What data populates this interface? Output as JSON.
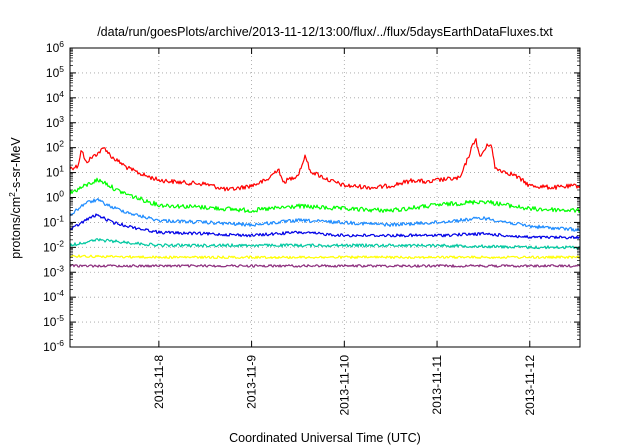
{
  "chart_data": {
    "type": "line",
    "title": "/data/run/goesPlots/archive/2013-11-12/13:00/flux/../flux/5daysEarthDataFluxes.txt",
    "xlabel": "Coordinated Universal Time (UTC)",
    "ylabel": {
      "prefix": "protons/cm",
      "sup": "2",
      "suffix": "-s-sr-MeV"
    },
    "y_scale": "log",
    "ylim": [
      1e-06,
      1000000.0
    ],
    "y_ticks": [
      {
        "value": 1000000.0,
        "base": "10",
        "exp": "6"
      },
      {
        "value": 100000.0,
        "base": "10",
        "exp": "5"
      },
      {
        "value": 10000.0,
        "base": "10",
        "exp": "4"
      },
      {
        "value": 1000.0,
        "base": "10",
        "exp": "3"
      },
      {
        "value": 100.0,
        "base": "10",
        "exp": "2"
      },
      {
        "value": 10.0,
        "base": "10",
        "exp": "1"
      },
      {
        "value": 1.0,
        "base": "10",
        "exp": "0"
      },
      {
        "value": 0.1,
        "base": "10",
        "exp": "-1"
      },
      {
        "value": 0.01,
        "base": "10",
        "exp": "-2"
      },
      {
        "value": 0.001,
        "base": "10",
        "exp": "-3"
      },
      {
        "value": 0.0001,
        "base": "10",
        "exp": "-4"
      },
      {
        "value": 1e-05,
        "base": "10",
        "exp": "-5"
      },
      {
        "value": 1e-06,
        "base": "10",
        "exp": "-6"
      }
    ],
    "xlim": [
      "2013-11-07 01:00",
      "2013-11-12 13:00"
    ],
    "x_ticks": [
      "2013-11-8",
      "2013-11-9",
      "2013-11-10",
      "2013-11-11",
      "2013-11-12"
    ],
    "x_tick_dates": [
      "2013-11-08 00:00",
      "2013-11-09 00:00",
      "2013-11-10 00:00",
      "2013-11-11 00:00",
      "2013-11-12 00:00"
    ],
    "grid": true,
    "legend": "none",
    "series": [
      {
        "color": "#ff0000",
        "points": [
          [
            "2013-11-07 01:00",
            15
          ],
          [
            "2013-11-07 03:00",
            18
          ],
          [
            "2013-11-07 04:00",
            90
          ],
          [
            "2013-11-07 05:00",
            25
          ],
          [
            "2013-11-07 07:00",
            45
          ],
          [
            "2013-11-07 08:30",
            65
          ],
          [
            "2013-11-07 10:00",
            100
          ],
          [
            "2013-11-07 11:00",
            60
          ],
          [
            "2013-11-07 12:00",
            40
          ],
          [
            "2013-11-07 14:00",
            25
          ],
          [
            "2013-11-07 16:00",
            15
          ],
          [
            "2013-11-07 20:00",
            8
          ],
          [
            "2013-11-08 00:00",
            5
          ],
          [
            "2013-11-08 06:00",
            4
          ],
          [
            "2013-11-08 12:00",
            3.5
          ],
          [
            "2013-11-08 18:00",
            2
          ],
          [
            "2013-11-09 00:00",
            3
          ],
          [
            "2013-11-09 04:00",
            5
          ],
          [
            "2013-11-09 07:00",
            15
          ],
          [
            "2013-11-09 08:00",
            4
          ],
          [
            "2013-11-09 12:00",
            8
          ],
          [
            "2013-11-09 14:00",
            50
          ],
          [
            "2013-11-09 15:00",
            12
          ],
          [
            "2013-11-09 20:00",
            5
          ],
          [
            "2013-11-10 00:00",
            3
          ],
          [
            "2013-11-10 08:00",
            2.5
          ],
          [
            "2013-11-10 12:00",
            3
          ],
          [
            "2013-11-10 18:00",
            5
          ],
          [
            "2013-11-10 22:00",
            4
          ],
          [
            "2013-11-11 00:00",
            5
          ],
          [
            "2013-11-11 06:00",
            6
          ],
          [
            "2013-11-11 10:00",
            250
          ],
          [
            "2013-11-11 11:00",
            40
          ],
          [
            "2013-11-11 13:00",
            120
          ],
          [
            "2013-11-11 14:00",
            150
          ],
          [
            "2013-11-11 15:00",
            15
          ],
          [
            "2013-11-11 20:00",
            8
          ],
          [
            "2013-11-12 00:00",
            3
          ],
          [
            "2013-11-12 06:00",
            2.5
          ],
          [
            "2013-11-12 13:00",
            3
          ]
        ]
      },
      {
        "color": "#00ff00",
        "points": [
          [
            "2013-11-07 01:00",
            1.5
          ],
          [
            "2013-11-07 05:00",
            3
          ],
          [
            "2013-11-07 08:00",
            5
          ],
          [
            "2013-11-07 10:00",
            4
          ],
          [
            "2013-11-07 13:00",
            2
          ],
          [
            "2013-11-07 18:00",
            1
          ],
          [
            "2013-11-08 00:00",
            0.5
          ],
          [
            "2013-11-08 12:00",
            0.4
          ],
          [
            "2013-11-09 00:00",
            0.3
          ],
          [
            "2013-11-09 12:00",
            0.45
          ],
          [
            "2013-11-10 00:00",
            0.35
          ],
          [
            "2013-11-10 12:00",
            0.3
          ],
          [
            "2013-11-11 00:00",
            0.5
          ],
          [
            "2013-11-11 12:00",
            0.7
          ],
          [
            "2013-11-12 00:00",
            0.35
          ],
          [
            "2013-11-12 13:00",
            0.3
          ]
        ]
      },
      {
        "color": "#1e8cff",
        "points": [
          [
            "2013-11-07 01:00",
            0.2
          ],
          [
            "2013-11-07 05:00",
            0.6
          ],
          [
            "2013-11-07 08:00",
            0.8
          ],
          [
            "2013-11-07 12:00",
            0.4
          ],
          [
            "2013-11-07 18:00",
            0.2
          ],
          [
            "2013-11-08 00:00",
            0.12
          ],
          [
            "2013-11-08 12:00",
            0.1
          ],
          [
            "2013-11-09 00:00",
            0.08
          ],
          [
            "2013-11-09 12:00",
            0.12
          ],
          [
            "2013-11-10 00:00",
            0.1
          ],
          [
            "2013-11-10 12:00",
            0.08
          ],
          [
            "2013-11-11 00:00",
            0.1
          ],
          [
            "2013-11-11 12:00",
            0.15
          ],
          [
            "2013-11-12 00:00",
            0.07
          ],
          [
            "2013-11-12 13:00",
            0.05
          ]
        ]
      },
      {
        "color": "#0000e6",
        "points": [
          [
            "2013-11-07 01:00",
            0.05
          ],
          [
            "2013-11-07 06:00",
            0.15
          ],
          [
            "2013-11-07 08:00",
            0.2
          ],
          [
            "2013-11-07 12:00",
            0.1
          ],
          [
            "2013-11-07 18:00",
            0.06
          ],
          [
            "2013-11-08 00:00",
            0.04
          ],
          [
            "2013-11-08 12:00",
            0.035
          ],
          [
            "2013-11-09 00:00",
            0.03
          ],
          [
            "2013-11-09 12:00",
            0.04
          ],
          [
            "2013-11-10 00:00",
            0.03
          ],
          [
            "2013-11-10 12:00",
            0.03
          ],
          [
            "2013-11-11 00:00",
            0.03
          ],
          [
            "2013-11-11 12:00",
            0.035
          ],
          [
            "2013-11-12 00:00",
            0.025
          ],
          [
            "2013-11-12 13:00",
            0.025
          ]
        ]
      },
      {
        "color": "#00c8a0",
        "points": [
          [
            "2013-11-07 01:00",
            0.012
          ],
          [
            "2013-11-07 08:00",
            0.02
          ],
          [
            "2013-11-08 00:00",
            0.012
          ],
          [
            "2013-11-09 00:00",
            0.012
          ],
          [
            "2013-11-10 00:00",
            0.012
          ],
          [
            "2013-11-11 00:00",
            0.012
          ],
          [
            "2013-11-12 00:00",
            0.01
          ],
          [
            "2013-11-12 13:00",
            0.01
          ]
        ]
      },
      {
        "color": "#ffff00",
        "points": [
          [
            "2013-11-07 01:00",
            0.0045
          ],
          [
            "2013-11-08 00:00",
            0.004
          ],
          [
            "2013-11-09 00:00",
            0.004
          ],
          [
            "2013-11-10 00:00",
            0.004
          ],
          [
            "2013-11-11 00:00",
            0.004
          ],
          [
            "2013-11-12 00:00",
            0.004
          ],
          [
            "2013-11-12 13:00",
            0.004
          ]
        ]
      },
      {
        "color": "#8c2d7d",
        "points": [
          [
            "2013-11-07 01:00",
            0.0018
          ],
          [
            "2013-11-08 00:00",
            0.0018
          ],
          [
            "2013-11-09 00:00",
            0.0018
          ],
          [
            "2013-11-10 00:00",
            0.0018
          ],
          [
            "2013-11-11 00:00",
            0.0018
          ],
          [
            "2013-11-12 00:00",
            0.0018
          ],
          [
            "2013-11-12 13:00",
            0.0018
          ]
        ]
      }
    ]
  }
}
